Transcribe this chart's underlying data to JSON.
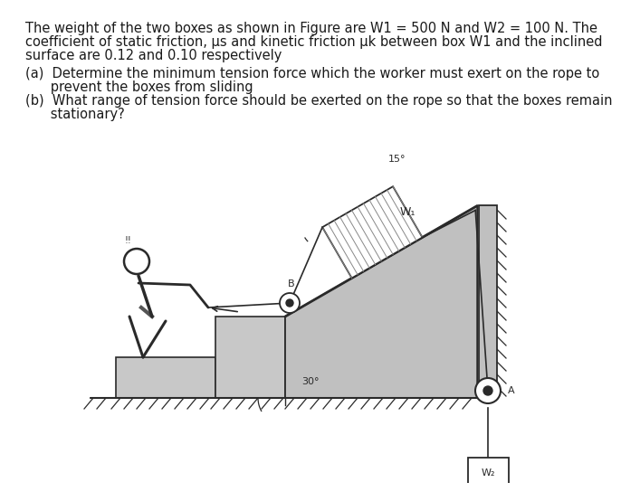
{
  "background_color": "#ffffff",
  "text_color": "#1a1a1a",
  "diagram_color": "#2a2a2a",
  "line1": "The weight of the two boxes as shown in Figure are W1 = 500 N and W2 = 100 N. The",
  "line2": "coefficient of static friction, μs and kinetic friction μk between box W1 and the inclined",
  "line3": "surface are 0.12 and 0.10 respectively",
  "line_a1": "(a)  Determine the minimum tension force which the worker must exert on the rope to",
  "line_a2": "      prevent the boxes from sliding",
  "line_b1": "(b)  What range of tension force should be exerted on the rope so that the boxes remain",
  "line_b2": "      stationary?",
  "label_B": "B",
  "label_A": "A",
  "label_W1": "W₁",
  "label_W2": "W₂",
  "label_30": "30°",
  "label_15": "15°",
  "font_size_text": 10.5,
  "font_size_label": 9
}
